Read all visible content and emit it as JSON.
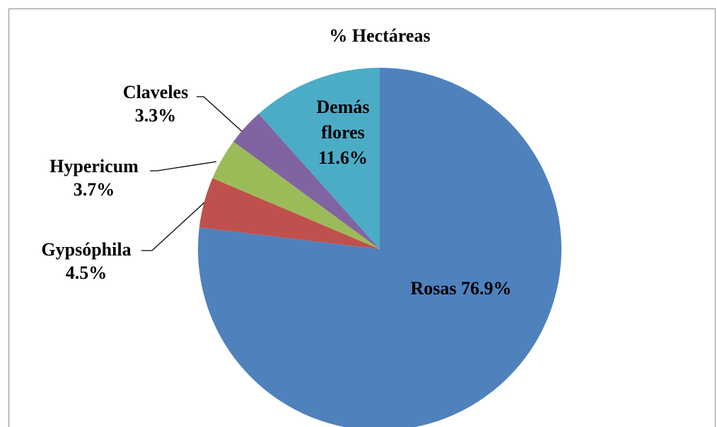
{
  "chart_data": {
    "type": "pie",
    "title": "% Hectáreas",
    "categories": [
      "Rosas",
      "Gypsóphila",
      "Hypericum",
      "Claveles",
      "Demás flores"
    ],
    "values": [
      76.9,
      4.5,
      3.7,
      3.3,
      11.6
    ],
    "value_labels": [
      "76.9%",
      "4.5%",
      "3.7%",
      "3.3%",
      "11.6%"
    ],
    "colors": [
      "#4f81bd",
      "#c0504d",
      "#9bbb59",
      "#8064a2",
      "#4bacc6"
    ]
  }
}
